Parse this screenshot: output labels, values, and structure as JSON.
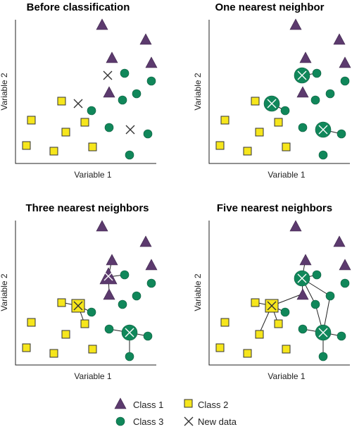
{
  "panels": [
    {
      "title": "Before classification",
      "xlabel": "Variable 1",
      "ylabel": "Variable 2"
    },
    {
      "title": "One nearest neighbor",
      "xlabel": "Variable 1",
      "ylabel": "Variable 2"
    },
    {
      "title": "Three nearest neighbors",
      "xlabel": "Variable 1",
      "ylabel": "Variable 2"
    },
    {
      "title": "Five nearest neighbors",
      "xlabel": "Variable 1",
      "ylabel": "Variable 2"
    }
  ],
  "legend": {
    "class1": "Class 1",
    "class2": "Class 2",
    "class3": "Class 3",
    "new_data": "New data"
  },
  "colors": {
    "class1": "#5c3a6e",
    "class2": "#f6e61c",
    "class3": "#10875a"
  }
}
